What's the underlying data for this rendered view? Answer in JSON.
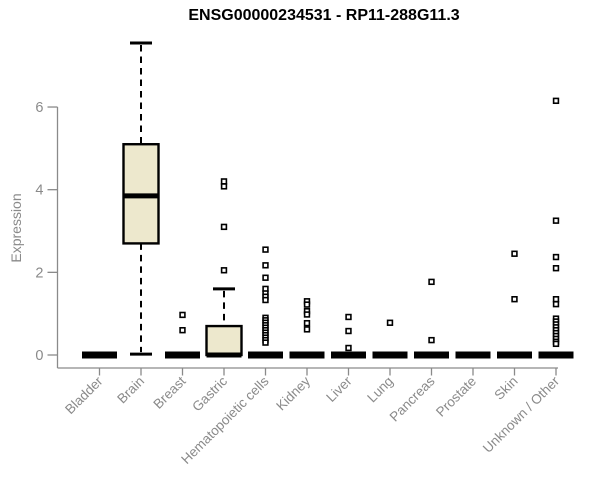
{
  "title": "ENSG00000234531 - RP11-288G11.3",
  "chart_data": {
    "type": "boxplot",
    "title": "ENSG00000234531 - RP11-288G11.3",
    "xlabel": "",
    "ylabel": "Expression",
    "yticks": [
      0,
      2,
      4,
      6
    ],
    "ylim": [
      0,
      7.6
    ],
    "grid": false,
    "legend": "none",
    "categories": [
      "Bladder",
      "Brain",
      "Breast",
      "Gastric",
      "Hematopoietic cells",
      "Kidney",
      "Liver",
      "Lung",
      "Pancreas",
      "Prostate",
      "Skin",
      "Unknown / Other"
    ],
    "boxes": [
      {
        "category": "Bladder",
        "q1": 0,
        "median": 0,
        "q3": 0,
        "whisker_low": 0,
        "whisker_high": 0,
        "outliers": []
      },
      {
        "category": "Brain",
        "q1": 2.7,
        "median": 3.85,
        "q3": 5.1,
        "whisker_low": 0.02,
        "whisker_high": 7.55,
        "outliers": []
      },
      {
        "category": "Breast",
        "q1": 0,
        "median": 0,
        "q3": 0,
        "whisker_low": 0,
        "whisker_high": 0,
        "outliers": [
          0.97,
          0.6
        ]
      },
      {
        "category": "Gastric",
        "q1": 0,
        "median": 0,
        "q3": 0.7,
        "whisker_low": 0,
        "whisker_high": 1.6,
        "outliers": [
          4.2,
          4.08,
          3.1,
          2.05
        ]
      },
      {
        "category": "Hematopoietic cells",
        "q1": 0,
        "median": 0,
        "q3": 0,
        "whisker_low": 0,
        "whisker_high": 0,
        "outliers": [
          2.55,
          2.17,
          1.87,
          1.6,
          1.49,
          1.41,
          1.33,
          0.9,
          0.84,
          0.78,
          0.72,
          0.66,
          0.6,
          0.54,
          0.48,
          0.42,
          0.36,
          0.3
        ]
      },
      {
        "category": "Kidney",
        "q1": 0,
        "median": 0,
        "q3": 0,
        "whisker_low": 0,
        "whisker_high": 0,
        "outliers": [
          1.3,
          1.22,
          1.06,
          0.98,
          0.77,
          0.62
        ]
      },
      {
        "category": "Liver",
        "q1": 0,
        "median": 0,
        "q3": 0,
        "whisker_low": 0,
        "whisker_high": 0,
        "outliers": [
          0.92,
          0.58,
          0.17
        ]
      },
      {
        "category": "Lung",
        "q1": 0,
        "median": 0,
        "q3": 0,
        "whisker_low": 0,
        "whisker_high": 0,
        "outliers": [
          0.78
        ]
      },
      {
        "category": "Pancreas",
        "q1": 0,
        "median": 0,
        "q3": 0,
        "whisker_low": 0,
        "whisker_high": 0,
        "outliers": [
          1.77,
          0.36
        ]
      },
      {
        "category": "Prostate",
        "q1": 0,
        "median": 0,
        "q3": 0,
        "whisker_low": 0,
        "whisker_high": 0,
        "outliers": []
      },
      {
        "category": "Skin",
        "q1": 0,
        "median": 0,
        "q3": 0,
        "whisker_low": 0,
        "whisker_high": 0,
        "outliers": [
          2.45,
          1.35
        ]
      },
      {
        "category": "Unknown / Other",
        "q1": 0,
        "median": 0,
        "q3": 0,
        "whisker_low": 0,
        "whisker_high": 0,
        "outliers": [
          6.15,
          3.25,
          2.37,
          2.1,
          1.35,
          1.23,
          0.88,
          0.81,
          0.74,
          0.67,
          0.6,
          0.53,
          0.46,
          0.39,
          0.32,
          0.27
        ]
      }
    ],
    "colors": {
      "box_fill": "#EDE8CD",
      "box_stroke": "#000000",
      "median": "#000000",
      "outlier_stroke": "#000000",
      "outlier_fill": "#FFFFFF",
      "axis": "#8a8a8a",
      "axis_text": "#8a8a8a",
      "title_text": "#000000",
      "background": "#FFFFFF"
    }
  }
}
